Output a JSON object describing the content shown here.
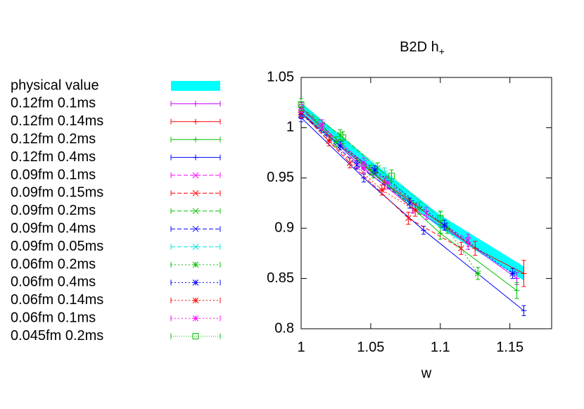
{
  "chart_data": {
    "type": "scatter",
    "title": "B2D h",
    "title_subscript": "+",
    "xlabel": "w",
    "xlim": [
      1,
      1.18
    ],
    "xticks": [
      1,
      1.05,
      1.1,
      1.15
    ],
    "ylim": [
      0.8,
      1.05
    ],
    "yticks": [
      0.8,
      0.85,
      0.9,
      0.95,
      1,
      1.05
    ],
    "grid": false,
    "legend": "left",
    "band": {
      "name": "physical value",
      "color": "#00ffff",
      "x": [
        1,
        1.05,
        1.1,
        1.16
      ],
      "lower": [
        1.013,
        0.955,
        0.9,
        0.848
      ],
      "upper": [
        1.025,
        0.967,
        0.913,
        0.862
      ]
    },
    "series": [
      {
        "name": "0.12fm 0.1ms",
        "color": "#cc00ff",
        "marker": "plus",
        "dash": "none",
        "x": [
          1.0,
          1.04,
          1.08,
          1.12,
          1.155
        ],
        "values": [
          1.02,
          0.965,
          0.92,
          0.885,
          0.85
        ],
        "errors": [
          0.005,
          0.005,
          0.005,
          0.006,
          0.006
        ]
      },
      {
        "name": "0.12fm 0.14ms",
        "color": "#ff0000",
        "marker": "plus",
        "dash": "none",
        "x": [
          1.0,
          1.06,
          1.125,
          1.16
        ],
        "values": [
          1.015,
          0.945,
          0.88,
          0.855
        ],
        "errors": [
          0.005,
          0.006,
          0.007,
          0.013
        ]
      },
      {
        "name": "0.12fm 0.2ms",
        "color": "#00c000",
        "marker": "plus",
        "dash": "none",
        "x": [
          1.0,
          1.05,
          1.1,
          1.155
        ],
        "values": [
          1.02,
          0.958,
          0.895,
          0.838
        ],
        "errors": [
          0.005,
          0.005,
          0.006,
          0.008
        ]
      },
      {
        "name": "0.12fm 0.4ms",
        "color": "#0000ff",
        "marker": "plus",
        "dash": "none",
        "x": [
          1.0,
          1.045,
          1.088,
          1.16
        ],
        "values": [
          1.01,
          0.95,
          0.898,
          0.818
        ],
        "errors": [
          0.004,
          0.004,
          0.004,
          0.005
        ]
      },
      {
        "name": "0.09fm 0.1ms",
        "color": "#ff00ff",
        "marker": "cross",
        "dash": "6,3",
        "x": [
          1.0,
          1.045,
          1.09,
          1.12
        ],
        "values": [
          1.018,
          0.965,
          0.915,
          0.888
        ],
        "errors": [
          0.005,
          0.005,
          0.006,
          0.006
        ]
      },
      {
        "name": "0.09fm 0.15ms",
        "color": "#ff0000",
        "marker": "cross",
        "dash": "6,3",
        "x": [
          1.0,
          1.035,
          1.077,
          1.115
        ],
        "values": [
          1.015,
          0.965,
          0.91,
          0.88
        ],
        "errors": [
          0.005,
          0.005,
          0.006,
          0.006
        ]
      },
      {
        "name": "0.09fm 0.2ms",
        "color": "#00c000",
        "marker": "cross",
        "dash": "6,3",
        "x": [
          1.0,
          1.028,
          1.055,
          1.085
        ],
        "values": [
          1.02,
          0.993,
          0.96,
          0.92
        ],
        "errors": [
          0.005,
          0.005,
          0.005,
          0.006
        ]
      },
      {
        "name": "0.09fm 0.4ms",
        "color": "#0000ff",
        "marker": "cross",
        "dash": "6,3",
        "x": [
          1.0,
          1.04,
          1.078
        ],
        "values": [
          1.015,
          0.963,
          0.925
        ],
        "errors": [
          0.004,
          0.004,
          0.005
        ]
      },
      {
        "name": "0.09fm 0.05ms",
        "color": "#00e0e0",
        "marker": "cross",
        "dash": "6,3",
        "x": [
          1.0,
          1.06,
          1.1
        ],
        "values": [
          1.02,
          0.955,
          0.91
        ],
        "errors": [
          0.005,
          0.005,
          0.006
        ]
      },
      {
        "name": "0.06fm 0.2ms",
        "color": "#00c000",
        "marker": "star",
        "dash": "2,3",
        "x": [
          1.0,
          1.025,
          1.052,
          1.105,
          1.127
        ],
        "values": [
          1.02,
          0.986,
          0.955,
          0.9,
          0.855
        ],
        "errors": [
          0.005,
          0.005,
          0.005,
          0.005,
          0.006
        ]
      },
      {
        "name": "0.06fm 0.4ms",
        "color": "#0000ff",
        "marker": "star",
        "dash": "2,3",
        "x": [
          1.0,
          1.028,
          1.053,
          1.103,
          1.152
        ],
        "values": [
          1.013,
          0.982,
          0.958,
          0.903,
          0.855
        ],
        "errors": [
          0.004,
          0.004,
          0.004,
          0.005,
          0.005
        ]
      },
      {
        "name": "0.06fm 0.14ms",
        "color": "#ff0000",
        "marker": "star",
        "dash": "2,3",
        "x": [
          1.0,
          1.02,
          1.058,
          1.082
        ],
        "values": [
          1.015,
          0.987,
          0.938,
          0.918
        ],
        "errors": [
          0.005,
          0.005,
          0.005,
          0.006
        ]
      },
      {
        "name": "0.06fm 0.1ms",
        "color": "#ff00ff",
        "marker": "star",
        "dash": "2,3",
        "x": [
          1.0,
          1.015,
          1.045,
          1.062
        ],
        "values": [
          1.02,
          1.003,
          0.96,
          0.945
        ],
        "errors": [
          0.005,
          0.005,
          0.005,
          0.006
        ]
      },
      {
        "name": "0.045fm 0.2ms",
        "color": "#00c000",
        "marker": "square",
        "dash": "1,2",
        "x": [
          1.0,
          1.03,
          1.065,
          1.1
        ],
        "values": [
          1.023,
          0.99,
          0.952,
          0.91
        ],
        "errors": [
          0.006,
          0.006,
          0.006,
          0.007
        ]
      }
    ]
  }
}
